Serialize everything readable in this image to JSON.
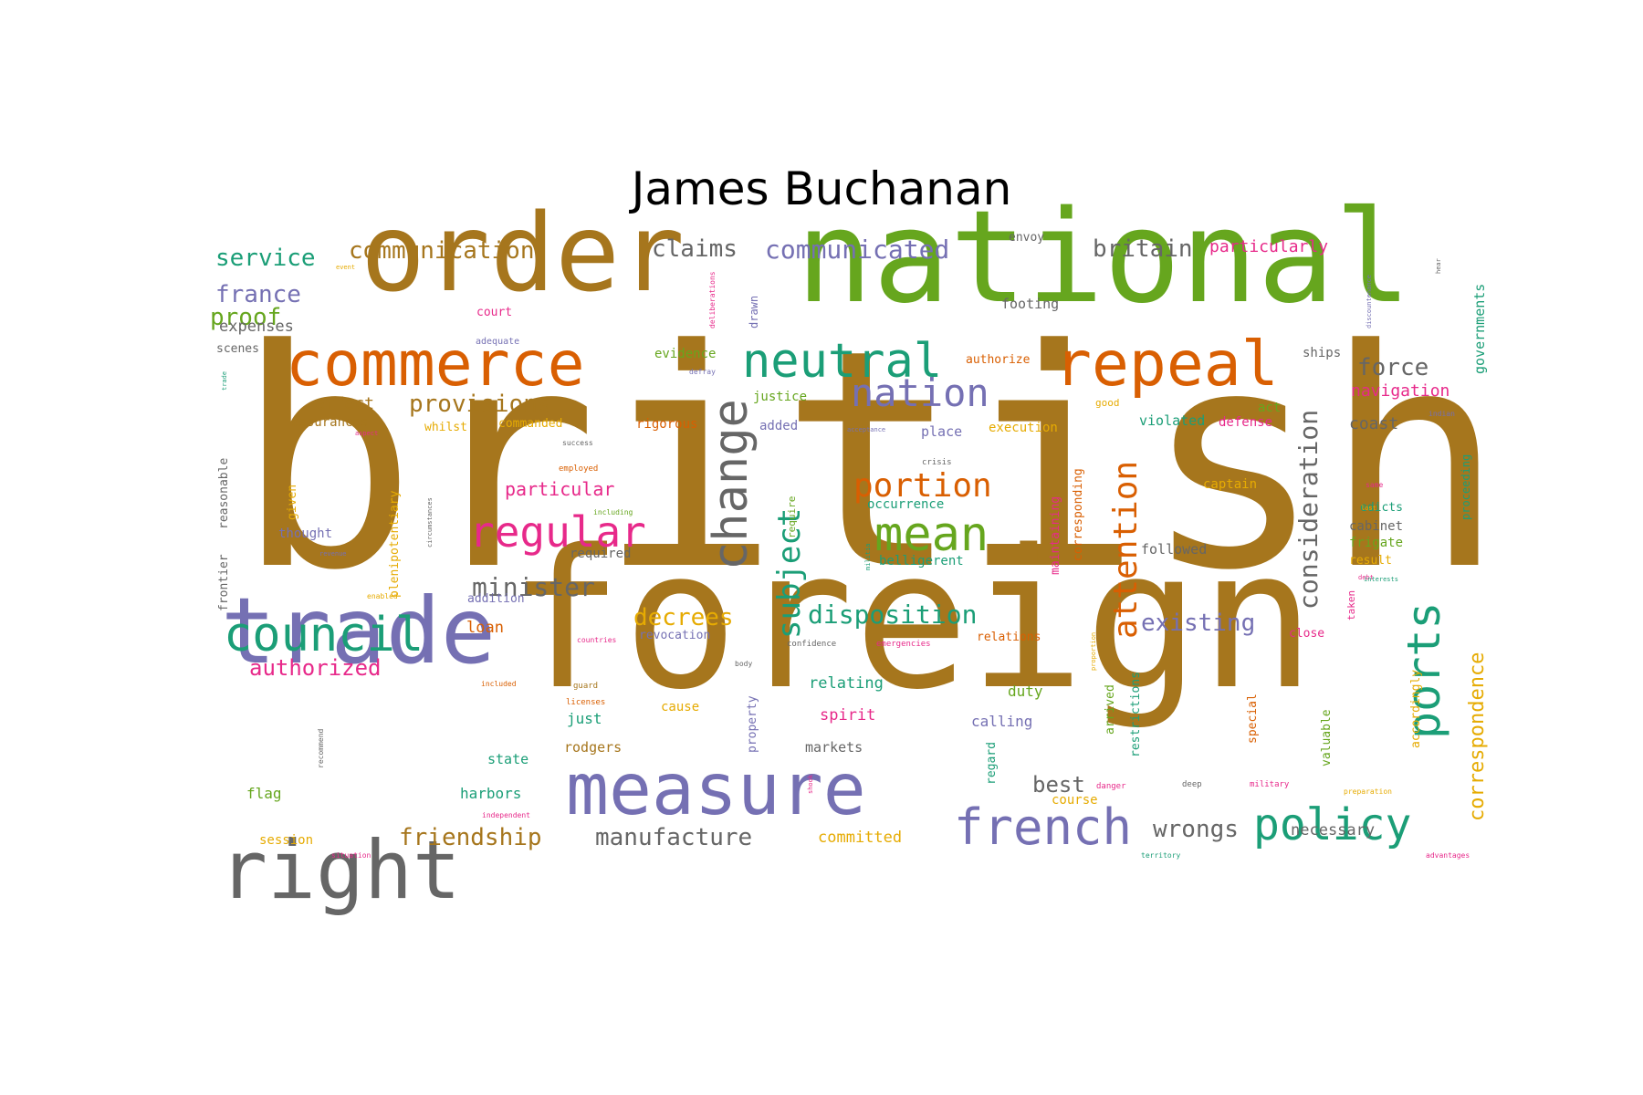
{
  "title": "James Buchanan",
  "palette": {
    "brown": "#a6761d",
    "green": "#66a61e",
    "orange": "#d95f02",
    "teal": "#1b9e77",
    "purple": "#7570b3",
    "gray": "#666666",
    "pink": "#e7298a",
    "yellow": "#e6ab02"
  },
  "words": [
    {
      "text": "british",
      "color": "brown"
    },
    {
      "text": "foreign",
      "color": "brown"
    },
    {
      "text": "order",
      "color": "brown"
    },
    {
      "text": "national",
      "color": "green"
    },
    {
      "text": "commerce",
      "color": "orange"
    },
    {
      "text": "repeal",
      "color": "orange"
    },
    {
      "text": "trade",
      "color": "purple"
    },
    {
      "text": "measure",
      "color": "purple"
    },
    {
      "text": "right",
      "color": "gray"
    },
    {
      "text": "council",
      "color": "teal"
    },
    {
      "text": "neutral",
      "color": "teal"
    },
    {
      "text": "nation",
      "color": "purple"
    },
    {
      "text": "change",
      "color": "gray"
    },
    {
      "text": "mean",
      "color": "green"
    },
    {
      "text": "regular",
      "color": "pink"
    },
    {
      "text": "french",
      "color": "purple"
    },
    {
      "text": "policy",
      "color": "teal"
    },
    {
      "text": "ports",
      "color": "teal"
    },
    {
      "text": "portion",
      "color": "orange"
    },
    {
      "text": "attention",
      "color": "orange"
    },
    {
      "text": "subject",
      "color": "teal"
    },
    {
      "text": "consideration",
      "color": "gray"
    },
    {
      "text": "provisions",
      "color": "brown"
    },
    {
      "text": "disposition",
      "color": "teal"
    },
    {
      "text": "minister",
      "color": "gray"
    },
    {
      "text": "communicated",
      "color": "purple"
    },
    {
      "text": "claims",
      "color": "gray"
    },
    {
      "text": "britain",
      "color": "gray"
    },
    {
      "text": "communication",
      "color": "brown"
    },
    {
      "text": "service",
      "color": "teal"
    },
    {
      "text": "france",
      "color": "purple"
    },
    {
      "text": "proof",
      "color": "green"
    },
    {
      "text": "force",
      "color": "gray"
    },
    {
      "text": "friendship",
      "color": "brown"
    },
    {
      "text": "manufacture",
      "color": "gray"
    },
    {
      "text": "wrongs",
      "color": "gray"
    },
    {
      "text": "existing",
      "color": "purple"
    },
    {
      "text": "decrees",
      "color": "yellow"
    },
    {
      "text": "authorized",
      "color": "pink"
    },
    {
      "text": "correspondence",
      "color": "yellow"
    },
    {
      "text": "best",
      "color": "gray"
    },
    {
      "text": "particularly",
      "color": "pink"
    },
    {
      "text": "navigation",
      "color": "pink"
    },
    {
      "text": "governments",
      "color": "teal"
    },
    {
      "text": "particular",
      "color": "pink"
    },
    {
      "text": "effect",
      "color": "brown"
    },
    {
      "text": "expenses",
      "color": "gray"
    },
    {
      "text": "coast",
      "color": "gray"
    },
    {
      "text": "necessary",
      "color": "gray"
    },
    {
      "text": "committed",
      "color": "yellow"
    },
    {
      "text": "loan",
      "color": "orange"
    },
    {
      "text": "followed",
      "color": "gray"
    },
    {
      "text": "relating",
      "color": "teal"
    },
    {
      "text": "spirit",
      "color": "pink"
    },
    {
      "text": "calling",
      "color": "purple"
    },
    {
      "text": "duty",
      "color": "green"
    },
    {
      "text": "markets",
      "color": "gray"
    },
    {
      "text": "rodgers",
      "color": "brown"
    },
    {
      "text": "just",
      "color": "teal"
    },
    {
      "text": "state",
      "color": "teal"
    },
    {
      "text": "harbors",
      "color": "teal"
    },
    {
      "text": "flag",
      "color": "green"
    },
    {
      "text": "session",
      "color": "yellow"
    },
    {
      "text": "course",
      "color": "yellow"
    },
    {
      "text": "envoy",
      "color": "gray"
    },
    {
      "text": "footing",
      "color": "gray"
    },
    {
      "text": "court",
      "color": "pink"
    },
    {
      "text": "scenes",
      "color": "gray"
    },
    {
      "text": "evidence",
      "color": "green"
    },
    {
      "text": "authorize",
      "color": "orange"
    },
    {
      "text": "ships",
      "color": "gray"
    },
    {
      "text": "justice",
      "color": "green"
    },
    {
      "text": "act",
      "color": "green"
    },
    {
      "text": "good",
      "color": "yellow"
    },
    {
      "text": "violated",
      "color": "teal"
    },
    {
      "text": "defense",
      "color": "pink"
    },
    {
      "text": "assurances",
      "color": "brown"
    },
    {
      "text": "whilst",
      "color": "yellow"
    },
    {
      "text": "commanded",
      "color": "yellow"
    },
    {
      "text": "rigorous",
      "color": "orange"
    },
    {
      "text": "added",
      "color": "purple"
    },
    {
      "text": "place",
      "color": "purple"
    },
    {
      "text": "execution",
      "color": "yellow"
    },
    {
      "text": "occurrence",
      "color": "teal"
    },
    {
      "text": "captain",
      "color": "yellow"
    },
    {
      "text": "edicts",
      "color": "teal"
    },
    {
      "text": "cabinet",
      "color": "gray"
    },
    {
      "text": "frigate",
      "color": "green"
    },
    {
      "text": "result",
      "color": "yellow"
    },
    {
      "text": "belligerent",
      "color": "teal"
    },
    {
      "text": "thought",
      "color": "purple"
    },
    {
      "text": "required",
      "color": "gray"
    },
    {
      "text": "addition",
      "color": "purple"
    },
    {
      "text": "revocation",
      "color": "purple"
    },
    {
      "text": "relations",
      "color": "orange"
    },
    {
      "text": "close",
      "color": "pink"
    },
    {
      "text": "cause",
      "color": "yellow"
    },
    {
      "text": "frontier",
      "color": "gray"
    },
    {
      "text": "reasonable",
      "color": "gray"
    },
    {
      "text": "given",
      "color": "yellow"
    },
    {
      "text": "plenipotentiary",
      "color": "yellow"
    },
    {
      "text": "maintaining",
      "color": "pink"
    },
    {
      "text": "corresponding",
      "color": "orange"
    },
    {
      "text": "arrived",
      "color": "green"
    },
    {
      "text": "restrictions",
      "color": "teal"
    },
    {
      "text": "special",
      "color": "orange"
    },
    {
      "text": "valuable",
      "color": "green"
    },
    {
      "text": "accordingly",
      "color": "yellow"
    },
    {
      "text": "property",
      "color": "purple"
    },
    {
      "text": "regard",
      "color": "teal"
    },
    {
      "text": "proceeding",
      "color": "teal"
    },
    {
      "text": "drawn",
      "color": "purple"
    },
    {
      "text": "require",
      "color": "green"
    },
    {
      "text": "taken",
      "color": "pink"
    },
    {
      "text": "adequate",
      "color": "purple"
    },
    {
      "text": "crisis",
      "color": "gray"
    },
    {
      "text": "employed",
      "color": "orange"
    },
    {
      "text": "success",
      "color": "gray"
    },
    {
      "text": "emergencies",
      "color": "pink"
    },
    {
      "text": "confidence",
      "color": "gray"
    },
    {
      "text": "countries",
      "color": "pink"
    },
    {
      "text": "guard",
      "color": "brown"
    },
    {
      "text": "licenses",
      "color": "orange"
    },
    {
      "text": "included",
      "color": "orange"
    },
    {
      "text": "body",
      "color": "gray"
    },
    {
      "text": "danger",
      "color": "pink"
    },
    {
      "text": "deep",
      "color": "gray"
    },
    {
      "text": "military",
      "color": "pink"
    },
    {
      "text": "preparation",
      "color": "yellow"
    },
    {
      "text": "independent",
      "color": "pink"
    },
    {
      "text": "situation",
      "color": "pink"
    },
    {
      "text": "territory",
      "color": "teal"
    },
    {
      "text": "advantages",
      "color": "pink"
    },
    {
      "text": "enabled",
      "color": "yellow"
    },
    {
      "text": "acceptance",
      "color": "purple"
    },
    {
      "text": "indian",
      "color": "purple"
    },
    {
      "text": "same",
      "color": "pink"
    },
    {
      "text": "debt",
      "color": "pink"
    },
    {
      "text": "interests",
      "color": "teal"
    },
    {
      "text": "aspect",
      "color": "pink"
    },
    {
      "text": "revenue",
      "color": "purple"
    },
    {
      "text": "circumstances",
      "color": "gray"
    },
    {
      "text": "including",
      "color": "green"
    },
    {
      "text": "deliberations",
      "color": "pink"
    },
    {
      "text": "discountenance",
      "color": "purple"
    },
    {
      "text": "hear",
      "color": "gray"
    },
    {
      "text": "militia",
      "color": "teal"
    },
    {
      "text": "event",
      "color": "yellow"
    },
    {
      "text": "defray",
      "color": "purple"
    },
    {
      "text": "trade",
      "color": "teal"
    },
    {
      "text": "recommend",
      "color": "gray"
    },
    {
      "text": "shook",
      "color": "pink"
    },
    {
      "text": "proportion",
      "color": "yellow"
    },
    {
      "text": "lost",
      "color": "yellow"
    }
  ]
}
